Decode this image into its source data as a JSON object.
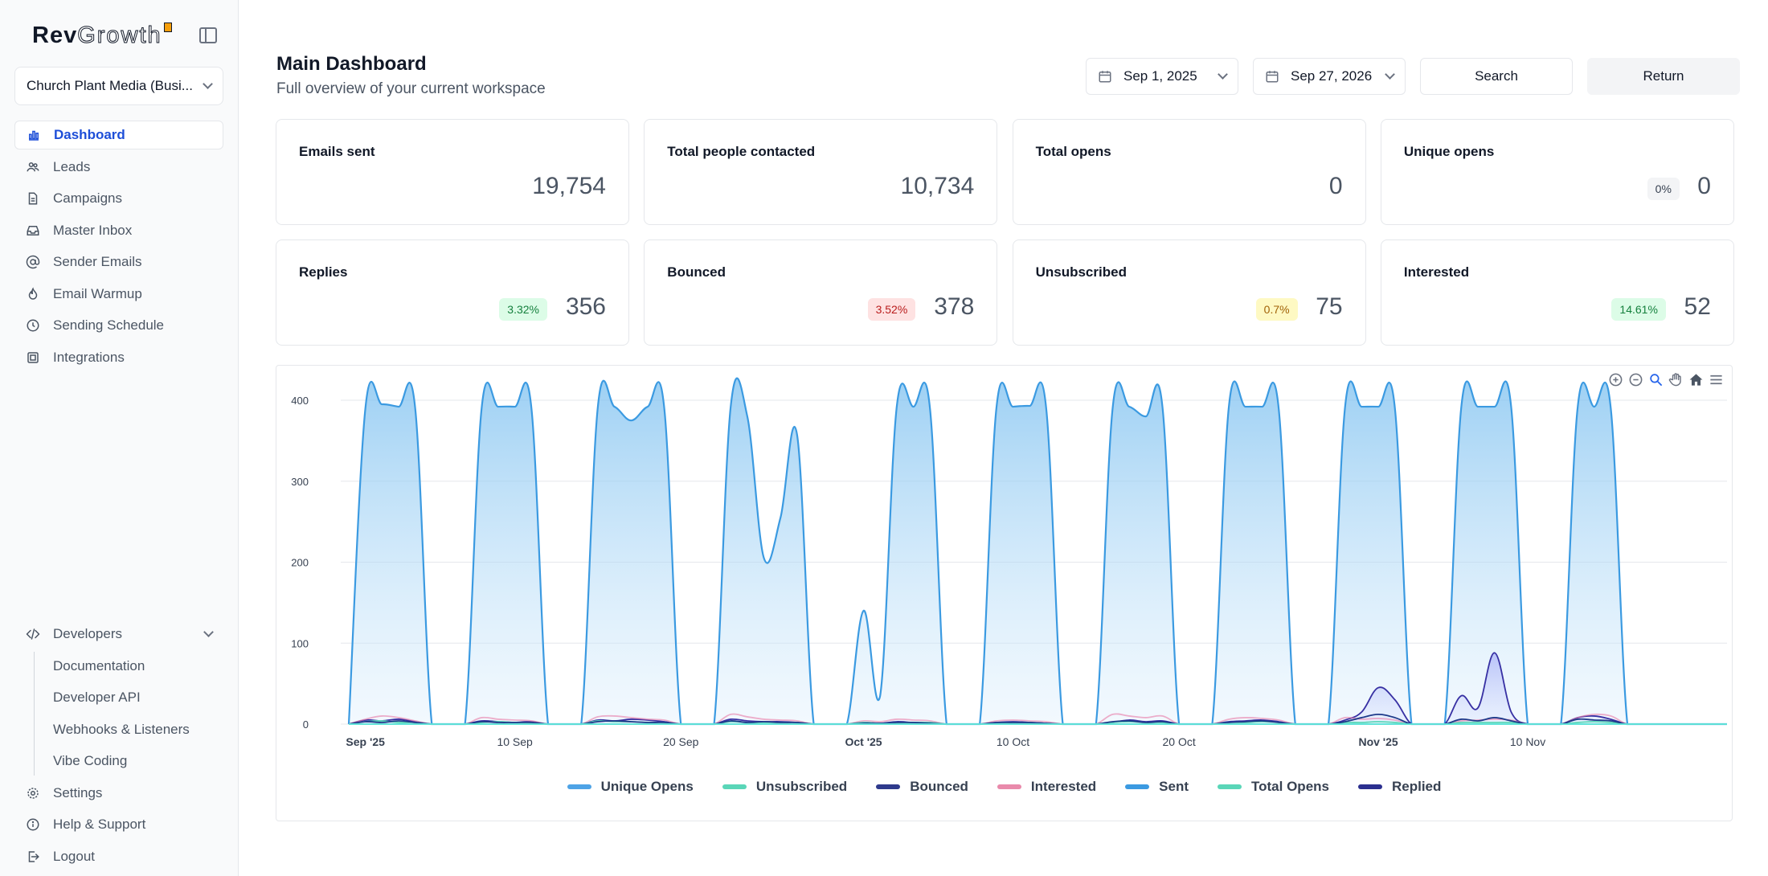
{
  "brand": {
    "part1": "Rev",
    "part2": "Growth"
  },
  "workspace": {
    "name": "Church Plant Media (Busi..."
  },
  "nav": {
    "items": [
      {
        "label": "Dashboard",
        "icon": "bar-chart-icon",
        "active": true
      },
      {
        "label": "Leads",
        "icon": "users-icon"
      },
      {
        "label": "Campaigns",
        "icon": "file-icon"
      },
      {
        "label": "Master Inbox",
        "icon": "inbox-icon"
      },
      {
        "label": "Sender Emails",
        "icon": "at-sign-icon"
      },
      {
        "label": "Email Warmup",
        "icon": "flame-icon"
      },
      {
        "label": "Sending Schedule",
        "icon": "clock-icon"
      },
      {
        "label": "Integrations",
        "icon": "chip-icon"
      }
    ]
  },
  "developers": {
    "label": "Developers",
    "items": [
      "Documentation",
      "Developer API",
      "Webhooks & Listeners",
      "Vibe Coding"
    ]
  },
  "bottom": {
    "settings": "Settings",
    "help": "Help & Support",
    "logout": "Logout"
  },
  "header": {
    "title": "Main Dashboard",
    "subtitle": "Full overview of your current workspace",
    "start_date": "Sep 1, 2025",
    "end_date": "Sep 27, 2026",
    "search": "Search",
    "return": "Return"
  },
  "stats": [
    {
      "label": "Emails sent",
      "value": "19,754"
    },
    {
      "label": "Total people contacted",
      "value": "10,734"
    },
    {
      "label": "Total opens",
      "value": "0"
    },
    {
      "label": "Unique opens",
      "value": "0",
      "badge": "0%",
      "badge_kind": "neutral"
    },
    {
      "label": "Replies",
      "value": "356",
      "badge": "3.32%",
      "badge_kind": "green"
    },
    {
      "label": "Bounced",
      "value": "378",
      "badge": "3.52%",
      "badge_kind": "red"
    },
    {
      "label": "Unsubscribed",
      "value": "75",
      "badge": "0.7%",
      "badge_kind": "yellow"
    },
    {
      "label": "Interested",
      "value": "52",
      "badge": "14.61%",
      "badge_kind": "green"
    }
  ],
  "colors": {
    "accent": "#1d4ed8",
    "badge_green_bg": "#dcfce7",
    "badge_green_fg": "#15803d",
    "badge_red_bg": "#fee2e2",
    "badge_red_fg": "#b91c1c",
    "badge_yellow_bg": "#fef9c3",
    "badge_yellow_fg": "#a16207",
    "badge_neutral_bg": "#f3f4f6",
    "badge_neutral_fg": "#374151"
  },
  "chart_data": {
    "type": "area",
    "x_start": "2025-08-31",
    "x_end": "2025-11-22",
    "ylim": [
      0,
      400
    ],
    "yticks": [
      0,
      100,
      200,
      300,
      400
    ],
    "xticks": [
      {
        "date": "2025-09-01",
        "label": "Sep '25",
        "bold": true
      },
      {
        "date": "2025-09-10",
        "label": "10 Sep",
        "bold": false
      },
      {
        "date": "2025-09-20",
        "label": "20 Sep",
        "bold": false
      },
      {
        "date": "2025-10-01",
        "label": "Oct '25",
        "bold": true
      },
      {
        "date": "2025-10-10",
        "label": "10 Oct",
        "bold": false
      },
      {
        "date": "2025-10-20",
        "label": "20 Oct",
        "bold": false
      },
      {
        "date": "2025-11-01",
        "label": "Nov '25",
        "bold": true
      },
      {
        "date": "2025-11-10",
        "label": "10 Nov",
        "bold": false
      }
    ],
    "x": [
      "2025-08-31",
      "2025-09-01",
      "2025-09-02",
      "2025-09-03",
      "2025-09-04",
      "2025-09-05",
      "2025-09-06",
      "2025-09-07",
      "2025-09-08",
      "2025-09-09",
      "2025-09-10",
      "2025-09-11",
      "2025-09-12",
      "2025-09-13",
      "2025-09-14",
      "2025-09-15",
      "2025-09-16",
      "2025-09-17",
      "2025-09-18",
      "2025-09-19",
      "2025-09-20",
      "2025-09-21",
      "2025-09-22",
      "2025-09-23",
      "2025-09-24",
      "2025-09-25",
      "2025-09-26",
      "2025-09-27",
      "2025-09-28",
      "2025-09-29",
      "2025-09-30",
      "2025-10-01",
      "2025-10-02",
      "2025-10-03",
      "2025-10-04",
      "2025-10-05",
      "2025-10-06",
      "2025-10-07",
      "2025-10-08",
      "2025-10-09",
      "2025-10-10",
      "2025-10-11",
      "2025-10-12",
      "2025-10-13",
      "2025-10-14",
      "2025-10-15",
      "2025-10-16",
      "2025-10-17",
      "2025-10-18",
      "2025-10-19",
      "2025-10-20",
      "2025-10-21",
      "2025-10-22",
      "2025-10-23",
      "2025-10-24",
      "2025-10-25",
      "2025-10-26",
      "2025-10-27",
      "2025-10-28",
      "2025-10-29",
      "2025-10-30",
      "2025-10-31",
      "2025-11-01",
      "2025-11-02",
      "2025-11-03",
      "2025-11-04",
      "2025-11-05",
      "2025-11-06",
      "2025-11-07",
      "2025-11-08",
      "2025-11-09",
      "2025-11-10",
      "2025-11-11",
      "2025-11-12",
      "2025-11-13",
      "2025-11-14",
      "2025-11-15",
      "2025-11-16",
      "2025-11-17",
      "2025-11-18",
      "2025-11-19",
      "2025-11-20",
      "2025-11-21",
      "2025-11-22"
    ],
    "series": [
      {
        "name": "Sent",
        "color": "#3b9ae1",
        "fill": true,
        "values": [
          0,
          390,
          395,
          392,
          390,
          0,
          0,
          0,
          390,
          392,
          392,
          390,
          0,
          0,
          0,
          392,
          392,
          375,
          392,
          390,
          0,
          0,
          0,
          392,
          380,
          205,
          255,
          357,
          0,
          0,
          0,
          140,
          35,
          392,
          392,
          390,
          0,
          0,
          0,
          390,
          392,
          393,
          390,
          0,
          0,
          0,
          390,
          392,
          380,
          392,
          0,
          0,
          0,
          392,
          392,
          392,
          390,
          0,
          0,
          0,
          392,
          392,
          392,
          390,
          0,
          0,
          0,
          392,
          392,
          392,
          392,
          0,
          0,
          0,
          390,
          392,
          390,
          0,
          0,
          0,
          0,
          0,
          0,
          0
        ]
      },
      {
        "name": "Replied",
        "color": "#3730a3",
        "fill": true,
        "values": [
          0,
          5,
          4,
          6,
          3,
          0,
          0,
          0,
          4,
          3,
          2,
          3,
          0,
          0,
          0,
          5,
          4,
          6,
          5,
          3,
          0,
          0,
          0,
          6,
          4,
          3,
          3,
          2,
          0,
          0,
          0,
          2,
          1,
          3,
          2,
          2,
          0,
          0,
          0,
          2,
          3,
          2,
          1,
          0,
          0,
          0,
          2,
          5,
          3,
          4,
          0,
          0,
          0,
          3,
          4,
          5,
          3,
          0,
          0,
          0,
          5,
          15,
          45,
          30,
          0,
          0,
          0,
          35,
          20,
          88,
          15,
          0,
          0,
          0,
          8,
          10,
          6,
          0,
          0,
          0,
          0,
          0,
          0,
          0
        ]
      },
      {
        "name": "Bounced",
        "color": "#1e3a8a",
        "fill": false,
        "values": [
          0,
          3,
          2,
          4,
          2,
          0,
          0,
          0,
          3,
          2,
          2,
          2,
          0,
          0,
          0,
          3,
          4,
          3,
          2,
          2,
          0,
          0,
          0,
          4,
          2,
          3,
          2,
          2,
          0,
          0,
          0,
          1,
          1,
          2,
          2,
          1,
          0,
          0,
          0,
          2,
          2,
          2,
          1,
          0,
          0,
          0,
          3,
          4,
          2,
          3,
          0,
          0,
          0,
          2,
          3,
          4,
          2,
          0,
          0,
          0,
          3,
          8,
          12,
          8,
          0,
          0,
          0,
          6,
          4,
          8,
          4,
          0,
          0,
          0,
          6,
          5,
          4,
          0,
          0,
          0,
          0,
          0,
          0,
          0
        ]
      },
      {
        "name": "Interested",
        "color": "#e879a6",
        "fill": false,
        "values": [
          0,
          6,
          10,
          8,
          4,
          0,
          0,
          0,
          8,
          6,
          5,
          4,
          0,
          0,
          0,
          9,
          10,
          8,
          6,
          5,
          0,
          0,
          0,
          12,
          9,
          6,
          5,
          4,
          0,
          0,
          0,
          4,
          3,
          6,
          5,
          4,
          0,
          0,
          0,
          4,
          5,
          4,
          3,
          0,
          0,
          0,
          12,
          10,
          8,
          10,
          0,
          0,
          0,
          6,
          8,
          7,
          5,
          0,
          0,
          0,
          8,
          6,
          7,
          5,
          0,
          0,
          0,
          4,
          5,
          6,
          5,
          0,
          0,
          0,
          8,
          12,
          10,
          0,
          0,
          0,
          0,
          0,
          0,
          0
        ]
      },
      {
        "name": "Unsubscribed",
        "color": "#5ad6b8",
        "fill": false,
        "values": [
          0,
          3,
          4,
          2,
          2,
          0,
          0,
          0,
          2,
          3,
          2,
          2,
          0,
          0,
          0,
          4,
          3,
          3,
          2,
          2,
          0,
          0,
          0,
          3,
          2,
          2,
          2,
          2,
          0,
          0,
          0,
          2,
          1,
          2,
          2,
          2,
          0,
          0,
          0,
          1,
          2,
          2,
          1,
          0,
          0,
          0,
          2,
          3,
          2,
          2,
          0,
          0,
          0,
          2,
          2,
          3,
          2,
          0,
          0,
          0,
          2,
          2,
          3,
          2,
          0,
          0,
          0,
          2,
          2,
          2,
          2,
          0,
          0,
          0,
          2,
          3,
          2,
          0,
          0,
          0,
          0,
          0,
          0,
          0
        ]
      },
      {
        "name": "Unique Opens",
        "color": "#60a5fa",
        "fill": false,
        "values": [
          0,
          0,
          0,
          0,
          0,
          0,
          0,
          0,
          0,
          0,
          0,
          0,
          0,
          0,
          0,
          0,
          0,
          0,
          0,
          0,
          0,
          0,
          0,
          0,
          0,
          0,
          0,
          0,
          0,
          0,
          0,
          0,
          0,
          0,
          0,
          0,
          0,
          0,
          0,
          0,
          0,
          0,
          0,
          0,
          0,
          0,
          0,
          0,
          0,
          0,
          0,
          0,
          0,
          0,
          0,
          0,
          0,
          0,
          0,
          0,
          0,
          0,
          0,
          0,
          0,
          0,
          0,
          0,
          0,
          0,
          0,
          0,
          0,
          0,
          0,
          0,
          0,
          0,
          0,
          0,
          0,
          0,
          0,
          0
        ]
      },
      {
        "name": "Total Opens",
        "color": "#5eead4",
        "fill": false,
        "values": [
          0,
          0,
          0,
          0,
          0,
          0,
          0,
          0,
          0,
          0,
          0,
          0,
          0,
          0,
          0,
          0,
          0,
          0,
          0,
          0,
          0,
          0,
          0,
          0,
          0,
          0,
          0,
          0,
          0,
          0,
          0,
          0,
          0,
          0,
          0,
          0,
          0,
          0,
          0,
          0,
          0,
          0,
          0,
          0,
          0,
          0,
          0,
          0,
          0,
          0,
          0,
          0,
          0,
          0,
          0,
          0,
          0,
          0,
          0,
          0,
          0,
          0,
          0,
          0,
          0,
          0,
          0,
          0,
          0,
          0,
          0,
          0,
          0,
          0,
          0,
          0,
          0,
          0,
          0,
          0,
          0,
          0,
          0,
          0
        ]
      }
    ],
    "legend": [
      {
        "name": "Unique Opens",
        "color": "#4ea3e6"
      },
      {
        "name": "Unsubscribed",
        "color": "#5ad6b8"
      },
      {
        "name": "Bounced",
        "color": "#2e3a8c"
      },
      {
        "name": "Interested",
        "color": "#e98aab"
      },
      {
        "name": "Sent",
        "color": "#3b9ae1"
      },
      {
        "name": "Total Opens",
        "color": "#5ad6b8"
      },
      {
        "name": "Replied",
        "color": "#2b2f8f"
      }
    ],
    "grid": true,
    "legend_position": "bottom"
  }
}
